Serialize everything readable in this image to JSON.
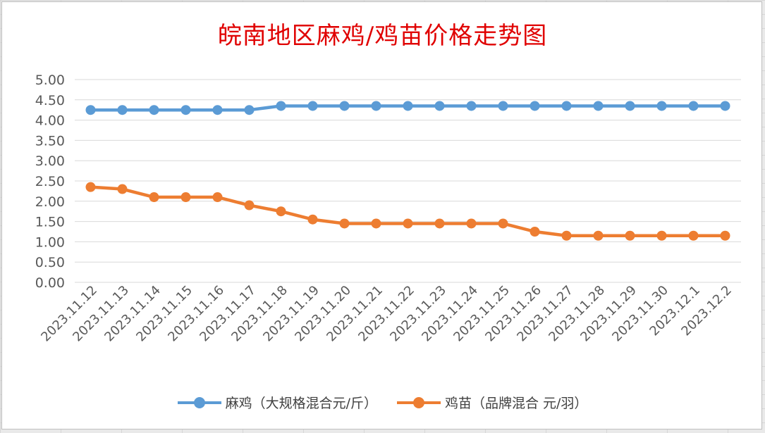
{
  "chart_data": {
    "type": "line",
    "title": "皖南地区麻鸡/鸡苗价格走势图",
    "categories": [
      "2023.11.12",
      "2023.11.13",
      "2023.11.14",
      "2023.11.15",
      "2023.11.16",
      "2023.11.17",
      "2023.11.18",
      "2023.11.19",
      "2023.11.20",
      "2023.11.21",
      "2023.11.22",
      "2023.11.23",
      "2023.11.24",
      "2023.11.25",
      "2023.11.26",
      "2023.11.27",
      "2023.11.28",
      "2023.11.29",
      "2023.11.30",
      "2023.12.1",
      "2023.12.2"
    ],
    "yticks": [
      "0.00",
      "0.50",
      "1.00",
      "1.50",
      "2.00",
      "2.50",
      "3.00",
      "3.50",
      "4.00",
      "4.50",
      "5.00"
    ],
    "ylim": [
      0,
      5
    ],
    "grid": true,
    "legend_position": "bottom",
    "series": [
      {
        "name": "麻鸡（大规格混合元/斤）",
        "color": "#5b9bd5",
        "values": [
          4.25,
          4.25,
          4.25,
          4.25,
          4.25,
          4.25,
          4.35,
          4.35,
          4.35,
          4.35,
          4.35,
          4.35,
          4.35,
          4.35,
          4.35,
          4.35,
          4.35,
          4.35,
          4.35,
          4.35,
          4.35
        ]
      },
      {
        "name": "鸡苗（品牌混合 元/羽）",
        "color": "#ed7d31",
        "values": [
          2.35,
          2.3,
          2.1,
          2.1,
          2.1,
          1.9,
          1.75,
          1.55,
          1.45,
          1.45,
          1.45,
          1.45,
          1.45,
          1.45,
          1.25,
          1.15,
          1.15,
          1.15,
          1.15,
          1.15,
          1.15
        ]
      }
    ]
  }
}
